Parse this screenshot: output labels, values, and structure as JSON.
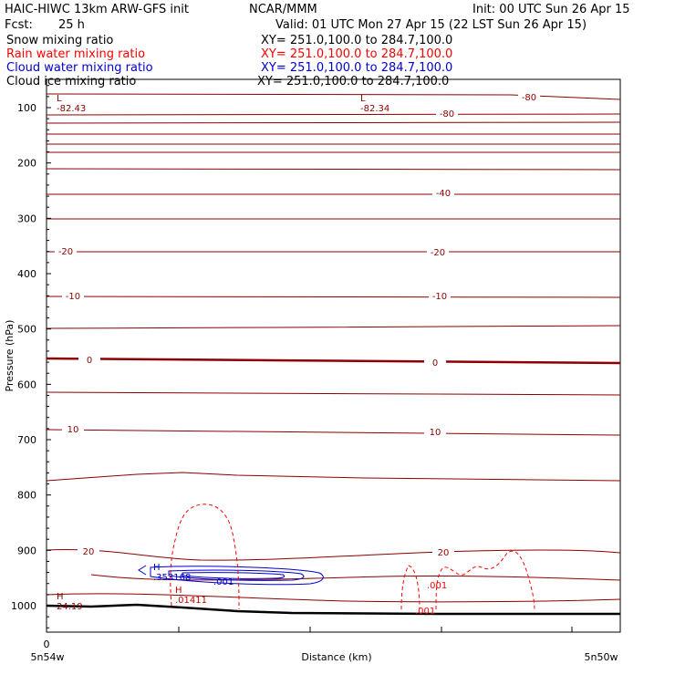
{
  "header": {
    "model": "HAIC-HIWC 13km ARW-GFS init",
    "org": "NCAR/MMM",
    "init": "Init: 00 UTC Sun 26 Apr 15",
    "fcst_label": "Fcst:",
    "fcst_value": "25 h",
    "valid": "Valid: 01 UTC Mon 27 Apr 15 (22 LST Sun 26 Apr 15)"
  },
  "legend": [
    {
      "label": "Snow mixing ratio",
      "xy": "XY= 251.0,100.0 to 284.7,100.0",
      "color": "#000000"
    },
    {
      "label": "Rain water mixing ratio",
      "xy": "XY= 251.0,100.0 to 284.7,100.0",
      "color": "#ff0000"
    },
    {
      "label": "Cloud water mixing ratio",
      "xy": "XY= 251.0,100.0 to 284.7,100.0",
      "color": "#0000cc"
    },
    {
      "label": "Cloud ice mixing ratio",
      "xy": "XY= 251.0,100.0 to 284.7,100.0",
      "color": "#000000"
    }
  ],
  "chart_data": {
    "type": "contour",
    "xlabel": "Distance (km)",
    "ylabel": "Pressure (hPa)",
    "x_ticks": [
      "0"
    ],
    "x_endpoints": [
      "5n54w",
      "5n50w"
    ],
    "y_ticks": [
      100,
      200,
      300,
      400,
      500,
      600,
      700,
      800,
      900,
      1000
    ],
    "temperature_labels": [
      "-80",
      "-80",
      "-40",
      "-20",
      "-20",
      "-10",
      "-10",
      "0",
      "0",
      "10",
      "10",
      "20",
      "20"
    ],
    "extrema": [
      {
        "kind": "L",
        "value": "-82.43",
        "color": "#8b0000"
      },
      {
        "kind": "L",
        "value": "-82.34",
        "color": "#8b0000"
      },
      {
        "kind": "H",
        "value": "24.19",
        "color": "#8b0000"
      },
      {
        "kind": "H",
        "value": ".353168",
        "color": "#0000cc"
      },
      {
        "kind": "H",
        "value": ".01411",
        "color": "#cc0000"
      }
    ],
    "cloud_labels": [
      ".001"
    ],
    "rain_labels": [
      ".001",
      ".001"
    ],
    "colors": {
      "temperature": "#8b0000",
      "rain": "#ff0000",
      "cloud": "#0000cc",
      "terrain": "#000000"
    }
  }
}
